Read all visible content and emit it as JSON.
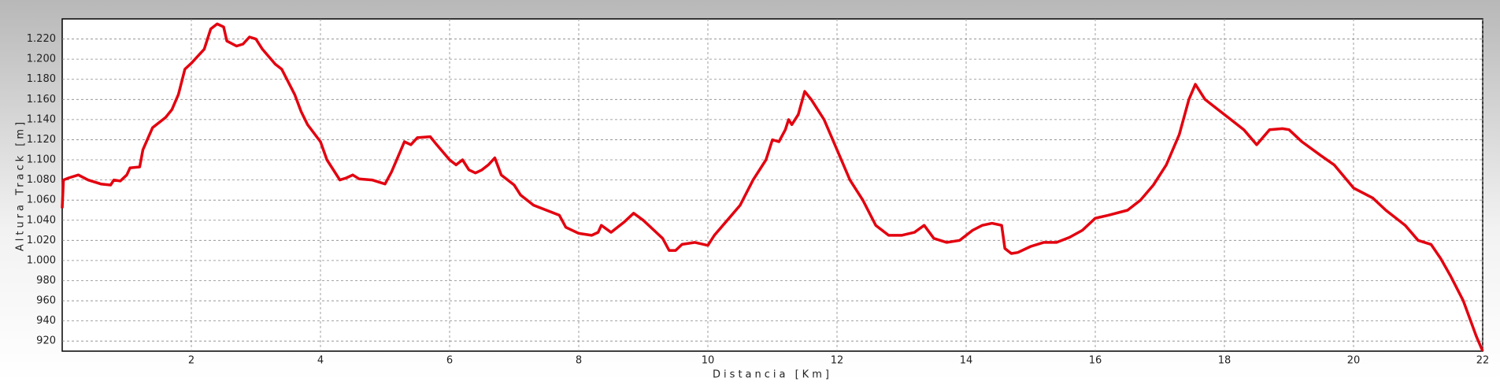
{
  "chart_data": {
    "type": "line",
    "x_label": "Distancia [Km]",
    "y_label": "Altura Track [m]",
    "xlim": [
      0,
      22
    ],
    "ylim": [
      910,
      1240
    ],
    "xticks": [
      2,
      4,
      6,
      8,
      10,
      12,
      14,
      16,
      18,
      20,
      22
    ],
    "yticks": [
      920,
      940,
      960,
      980,
      {
        "value": 1000,
        "label": "1.000"
      },
      {
        "value": 1020,
        "label": "1.020"
      },
      {
        "value": 1040,
        "label": "1.040"
      },
      {
        "value": 1060,
        "label": "1.060"
      },
      {
        "value": 1080,
        "label": "1.080"
      },
      {
        "value": 1100,
        "label": "1.100"
      },
      {
        "value": 1120,
        "label": "1.120"
      },
      {
        "value": 1140,
        "label": "1.140"
      },
      {
        "value": 1160,
        "label": "1.160"
      },
      {
        "value": 1180,
        "label": "1.180"
      },
      {
        "value": 1200,
        "label": "1.200"
      },
      {
        "value": 1220,
        "label": "1.220"
      }
    ],
    "grid": true,
    "color": "#e3000f",
    "x": [
      0,
      0.02,
      0.1,
      0.25,
      0.4,
      0.6,
      0.75,
      0.8,
      0.9,
      1.0,
      1.05,
      1.2,
      1.25,
      1.4,
      1.6,
      1.7,
      1.8,
      1.9,
      2.0,
      2.2,
      2.3,
      2.4,
      2.5,
      2.55,
      2.7,
      2.8,
      2.9,
      3.0,
      3.1,
      3.3,
      3.4,
      3.6,
      3.7,
      3.8,
      4.0,
      4.1,
      4.3,
      4.4,
      4.5,
      4.6,
      4.8,
      5.0,
      5.1,
      5.3,
      5.4,
      5.5,
      5.7,
      5.8,
      6.0,
      6.1,
      6.2,
      6.3,
      6.4,
      6.5,
      6.6,
      6.7,
      6.8,
      7.0,
      7.1,
      7.3,
      7.5,
      7.7,
      7.8,
      8.0,
      8.2,
      8.3,
      8.35,
      8.5,
      8.7,
      8.85,
      9.0,
      9.2,
      9.3,
      9.4,
      9.5,
      9.6,
      9.8,
      10.0,
      10.1,
      10.3,
      10.5,
      10.7,
      10.9,
      11.0,
      11.1,
      11.2,
      11.25,
      11.3,
      11.4,
      11.5,
      11.6,
      11.8,
      12.0,
      12.2,
      12.4,
      12.6,
      12.8,
      13.0,
      13.2,
      13.35,
      13.5,
      13.7,
      13.9,
      14.1,
      14.25,
      14.4,
      14.55,
      14.6,
      14.7,
      14.8,
      15.0,
      15.2,
      15.4,
      15.6,
      15.8,
      16.0,
      16.2,
      16.5,
      16.7,
      16.9,
      17.1,
      17.3,
      17.45,
      17.55,
      17.7,
      17.9,
      18.1,
      18.3,
      18.5,
      18.7,
      18.9,
      19.0,
      19.2,
      19.5,
      19.7,
      20.0,
      20.3,
      20.5,
      20.8,
      21.0,
      21.2,
      21.35,
      21.5,
      21.7,
      21.9,
      22.0
    ],
    "values": [
      1052,
      1080,
      1082,
      1085,
      1080,
      1076,
      1075,
      1080,
      1079,
      1085,
      1092,
      1093,
      1110,
      1132,
      1142,
      1150,
      1165,
      1190,
      1196,
      1210,
      1230,
      1235,
      1232,
      1218,
      1213,
      1215,
      1222,
      1220,
      1210,
      1195,
      1190,
      1165,
      1148,
      1135,
      1118,
      1100,
      1080,
      1082,
      1085,
      1081,
      1080,
      1076,
      1088,
      1118,
      1115,
      1122,
      1123,
      1115,
      1100,
      1095,
      1100,
      1090,
      1087,
      1090,
      1095,
      1102,
      1085,
      1075,
      1065,
      1055,
      1050,
      1045,
      1033,
      1027,
      1025,
      1028,
      1035,
      1028,
      1038,
      1047,
      1040,
      1028,
      1022,
      1010,
      1010,
      1016,
      1018,
      1015,
      1025,
      1040,
      1055,
      1080,
      1100,
      1120,
      1118,
      1130,
      1140,
      1135,
      1145,
      1168,
      1160,
      1140,
      1110,
      1080,
      1060,
      1035,
      1025,
      1025,
      1028,
      1035,
      1022,
      1018,
      1020,
      1030,
      1035,
      1037,
      1035,
      1012,
      1007,
      1008,
      1014,
      1018,
      1018,
      1023,
      1030,
      1042,
      1045,
      1050,
      1060,
      1075,
      1095,
      1125,
      1160,
      1175,
      1160,
      1150,
      1140,
      1130,
      1115,
      1130,
      1131,
      1130,
      1118,
      1104,
      1095,
      1072,
      1062,
      1050,
      1035,
      1020,
      1016,
      1002,
      985,
      960,
      925,
      910
    ]
  }
}
